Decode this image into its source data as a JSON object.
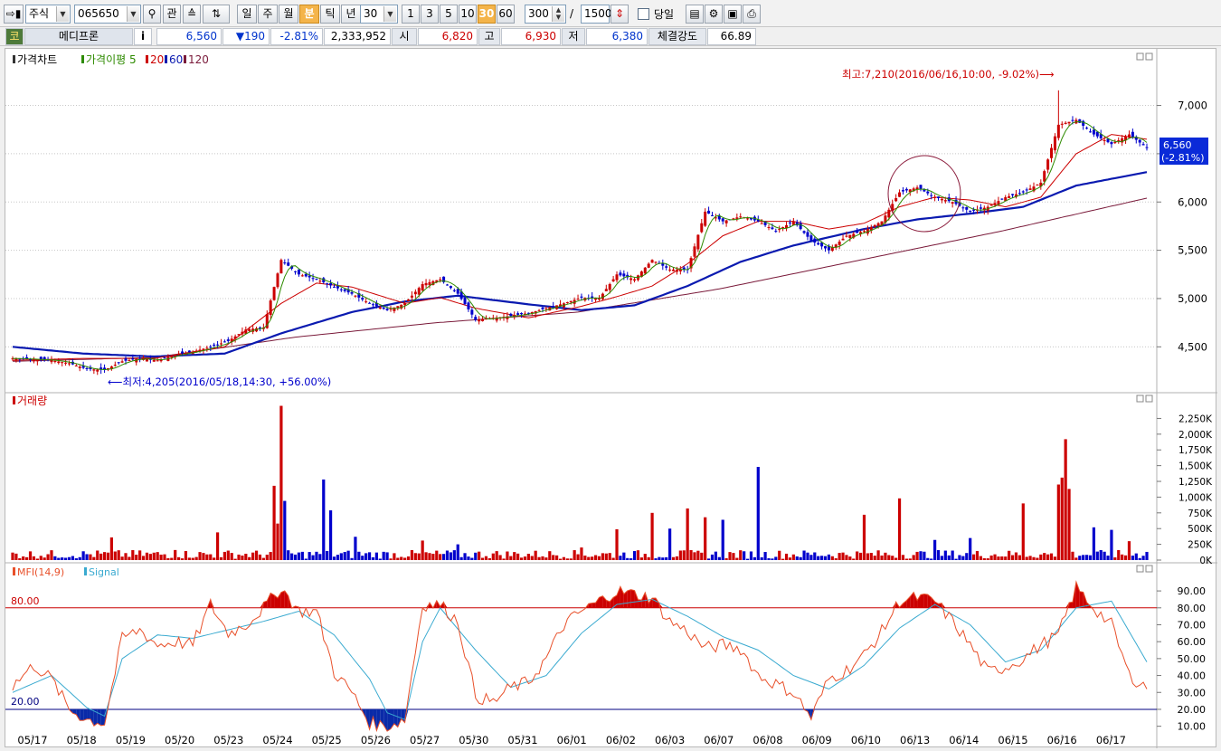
{
  "toolbar": {
    "market_label": "주식",
    "code_value": "065650",
    "watch_button": "관",
    "period_buttons": [
      "일",
      "주",
      "월",
      "분",
      "틱",
      "년"
    ],
    "active_period": "분",
    "interval_value": "30",
    "interval_buttons": [
      "1",
      "3",
      "5",
      "10",
      "30",
      "60"
    ],
    "active_interval": "30",
    "display_count": "300",
    "separator": "/",
    "max_count": "1500",
    "today_label": "당일"
  },
  "stock_info": {
    "badge": "코",
    "name": "메디프론",
    "info_button": "i",
    "price": "6,560",
    "change": "▼190",
    "change_pct": "-2.81%",
    "volume": "2,333,952",
    "open_label": "시",
    "open": "6,820",
    "high_label": "고",
    "high": "6,930",
    "low_label": "저",
    "low": "6,380",
    "strength_label": "체결강도",
    "strength": "66.89"
  },
  "colors": {
    "up": "#cc0000",
    "down": "#0000cc",
    "ma5": "#2e8b00",
    "ma20": "#cc0000",
    "ma60": "#0a1ab0",
    "ma120": "#7a1a3a",
    "mfi": "#e8502a",
    "signal": "#3aaad0"
  },
  "chart_data": [
    {
      "type": "candlestick",
      "legend": {
        "title": "가격차트",
        "ma_label": "가격이평 5",
        "ma20": "20",
        "ma60": "60",
        "ma120": "120"
      },
      "x_labels": [
        "05/17",
        "05/18",
        "05/19",
        "05/20",
        "05/23",
        "05/24",
        "05/25",
        "05/26",
        "05/27",
        "05/30",
        "05/31",
        "06/01",
        "06/02",
        "06/03",
        "06/07",
        "06/08",
        "06/09",
        "06/10",
        "06/13",
        "06/14",
        "06/15",
        "06/16",
        "06/17"
      ],
      "y_ticks": [
        "4,500",
        "5,000",
        "5,500",
        "6,000",
        "6,500",
        "7,000"
      ],
      "y_range": [
        4100,
        7380
      ],
      "close_path": [
        [
          0,
          4380
        ],
        [
          6,
          4370
        ],
        [
          11,
          4360
        ],
        [
          16,
          4330
        ],
        [
          21,
          4270
        ],
        [
          26,
          4260
        ],
        [
          31,
          4350
        ],
        [
          36,
          4380
        ],
        [
          41,
          4360
        ],
        [
          46,
          4420
        ],
        [
          51,
          4450
        ],
        [
          56,
          4500
        ],
        [
          61,
          4560
        ],
        [
          66,
          4680
        ],
        [
          71,
          4700
        ],
        [
          76,
          5400
        ],
        [
          81,
          5250
        ],
        [
          86,
          5200
        ],
        [
          91,
          5120
        ],
        [
          96,
          5050
        ],
        [
          101,
          4950
        ],
        [
          106,
          4880
        ],
        [
          111,
          4950
        ],
        [
          116,
          5150
        ],
        [
          121,
          5200
        ],
        [
          126,
          5050
        ],
        [
          131,
          4780
        ],
        [
          136,
          4800
        ],
        [
          141,
          4820
        ],
        [
          146,
          4850
        ],
        [
          151,
          4900
        ],
        [
          156,
          4950
        ],
        [
          161,
          5010
        ],
        [
          166,
          5000
        ],
        [
          171,
          5250
        ],
        [
          176,
          5200
        ],
        [
          181,
          5400
        ],
        [
          186,
          5300
        ],
        [
          191,
          5300
        ],
        [
          196,
          5900
        ],
        [
          201,
          5800
        ],
        [
          206,
          5850
        ],
        [
          211,
          5800
        ],
        [
          216,
          5700
        ],
        [
          221,
          5800
        ],
        [
          226,
          5600
        ],
        [
          231,
          5500
        ],
        [
          236,
          5650
        ],
        [
          241,
          5700
        ],
        [
          246,
          5800
        ],
        [
          251,
          6100
        ],
        [
          256,
          6150
        ],
        [
          261,
          6050
        ],
        [
          266,
          6000
        ],
        [
          271,
          5900
        ],
        [
          276,
          5950
        ],
        [
          281,
          6050
        ],
        [
          286,
          6100
        ],
        [
          291,
          6200
        ],
        [
          296,
          6800
        ],
        [
          301,
          6850
        ],
        [
          306,
          6700
        ],
        [
          311,
          6600
        ],
        [
          316,
          6700
        ],
        [
          321,
          6560
        ]
      ],
      "ma20_path": [
        [
          0,
          4360
        ],
        [
          20,
          4380
        ],
        [
          40,
          4380
        ],
        [
          60,
          4500
        ],
        [
          76,
          4950
        ],
        [
          86,
          5160
        ],
        [
          96,
          5120
        ],
        [
          111,
          4950
        ],
        [
          121,
          5010
        ],
        [
          131,
          4900
        ],
        [
          146,
          4800
        ],
        [
          161,
          4920
        ],
        [
          171,
          5020
        ],
        [
          181,
          5130
        ],
        [
          191,
          5360
        ],
        [
          201,
          5650
        ],
        [
          211,
          5800
        ],
        [
          221,
          5800
        ],
        [
          231,
          5720
        ],
        [
          241,
          5780
        ],
        [
          251,
          5950
        ],
        [
          261,
          6050
        ],
        [
          271,
          6020
        ],
        [
          281,
          5950
        ],
        [
          291,
          6050
        ],
        [
          301,
          6500
        ],
        [
          311,
          6700
        ],
        [
          321,
          6650
        ]
      ],
      "ma60_path": [
        [
          0,
          4500
        ],
        [
          20,
          4430
        ],
        [
          40,
          4400
        ],
        [
          60,
          4430
        ],
        [
          76,
          4640
        ],
        [
          96,
          4860
        ],
        [
          111,
          4970
        ],
        [
          126,
          5030
        ],
        [
          146,
          4940
        ],
        [
          161,
          4880
        ],
        [
          176,
          4930
        ],
        [
          191,
          5130
        ],
        [
          206,
          5380
        ],
        [
          221,
          5550
        ],
        [
          241,
          5720
        ],
        [
          256,
          5820
        ],
        [
          271,
          5880
        ],
        [
          286,
          5950
        ],
        [
          301,
          6170
        ],
        [
          321,
          6310
        ]
      ],
      "ma120_path": [
        [
          0,
          4350
        ],
        [
          40,
          4390
        ],
        [
          80,
          4600
        ],
        [
          120,
          4750
        ],
        [
          160,
          4860
        ],
        [
          200,
          5100
        ],
        [
          240,
          5400
        ],
        [
          280,
          5700
        ],
        [
          321,
          6040
        ]
      ],
      "annotations": {
        "high": "최고:7,210(2016/06/16,10:00, -9.02%)⟶",
        "low": "⟵최저:4,205(2016/05/18,14:30, +56.00%)"
      },
      "current_price_label": "6,560",
      "current_change_label": "(-2.81%)"
    },
    {
      "type": "bar",
      "title": "거래량",
      "y_ticks": [
        "0K",
        "250K",
        "500K",
        "750K",
        "1,000K",
        "1,250K",
        "1,500K",
        "1,750K",
        "2,000K",
        "2,250K"
      ],
      "y_range": [
        0,
        2400
      ],
      "peaks": [
        [
          28,
          360
        ],
        [
          46,
          160
        ],
        [
          58,
          440
        ],
        [
          74,
          1180
        ],
        [
          75,
          580
        ],
        [
          76,
          2450
        ],
        [
          77,
          940
        ],
        [
          88,
          1280
        ],
        [
          90,
          790
        ],
        [
          97,
          370
        ],
        [
          116,
          310
        ],
        [
          126,
          250
        ],
        [
          161,
          200
        ],
        [
          171,
          490
        ],
        [
          181,
          750
        ],
        [
          186,
          500
        ],
        [
          191,
          820
        ],
        [
          196,
          680
        ],
        [
          201,
          640
        ],
        [
          211,
          1480
        ],
        [
          241,
          720
        ],
        [
          251,
          980
        ],
        [
          261,
          320
        ],
        [
          271,
          350
        ],
        [
          286,
          900
        ],
        [
          296,
          1200
        ],
        [
          297,
          1310
        ],
        [
          298,
          1920
        ],
        [
          299,
          1130
        ],
        [
          306,
          520
        ],
        [
          311,
          480
        ],
        [
          316,
          300
        ],
        [
          321,
          130
        ]
      ]
    },
    {
      "type": "line",
      "title": "MFI(14,9)",
      "signal_label": "Signal",
      "y_ticks": [
        "10.00",
        "20.00",
        "30.00",
        "40.00",
        "50.00",
        "60.00",
        "70.00",
        "80.00",
        "90.00"
      ],
      "y_range": [
        5,
        97
      ],
      "overbought_label": "80.00",
      "oversold_label": "20.00",
      "mfi_path": [
        [
          0,
          34
        ],
        [
          6,
          46
        ],
        [
          11,
          38
        ],
        [
          16,
          20
        ],
        [
          21,
          14
        ],
        [
          26,
          12
        ],
        [
          31,
          62
        ],
        [
          36,
          67
        ],
        [
          41,
          58
        ],
        [
          46,
          60
        ],
        [
          51,
          58
        ],
        [
          56,
          82
        ],
        [
          61,
          65
        ],
        [
          66,
          70
        ],
        [
          71,
          80
        ],
        [
          76,
          92
        ],
        [
          81,
          78
        ],
        [
          86,
          78
        ],
        [
          91,
          42
        ],
        [
          96,
          30
        ],
        [
          101,
          12
        ],
        [
          106,
          10
        ],
        [
          111,
          14
        ],
        [
          116,
          82
        ],
        [
          121,
          82
        ],
        [
          126,
          72
        ],
        [
          131,
          28
        ],
        [
          136,
          24
        ],
        [
          141,
          33
        ],
        [
          146,
          36
        ],
        [
          151,
          50
        ],
        [
          156,
          70
        ],
        [
          161,
          78
        ],
        [
          166,
          84
        ],
        [
          171,
          90
        ],
        [
          176,
          88
        ],
        [
          181,
          86
        ],
        [
          186,
          72
        ],
        [
          191,
          66
        ],
        [
          196,
          56
        ],
        [
          201,
          58
        ],
        [
          206,
          56
        ],
        [
          211,
          40
        ],
        [
          216,
          35
        ],
        [
          221,
          30
        ],
        [
          226,
          15
        ],
        [
          231,
          38
        ],
        [
          236,
          43
        ],
        [
          241,
          52
        ],
        [
          246,
          66
        ],
        [
          251,
          84
        ],
        [
          256,
          86
        ],
        [
          261,
          84
        ],
        [
          266,
          72
        ],
        [
          271,
          58
        ],
        [
          276,
          42
        ],
        [
          281,
          45
        ],
        [
          286,
          50
        ],
        [
          291,
          58
        ],
        [
          296,
          64
        ],
        [
          301,
          92
        ],
        [
          306,
          80
        ],
        [
          311,
          70
        ],
        [
          316,
          40
        ],
        [
          321,
          33
        ]
      ],
      "signal_path": [
        [
          0,
          30
        ],
        [
          11,
          40
        ],
        [
          21,
          21
        ],
        [
          26,
          16
        ],
        [
          31,
          50
        ],
        [
          41,
          64
        ],
        [
          51,
          62
        ],
        [
          61,
          67
        ],
        [
          71,
          72
        ],
        [
          81,
          78
        ],
        [
          91,
          64
        ],
        [
          101,
          38
        ],
        [
          106,
          18
        ],
        [
          111,
          14
        ],
        [
          116,
          60
        ],
        [
          121,
          80
        ],
        [
          131,
          55
        ],
        [
          141,
          33
        ],
        [
          151,
          40
        ],
        [
          161,
          65
        ],
        [
          171,
          82
        ],
        [
          181,
          85
        ],
        [
          191,
          75
        ],
        [
          201,
          63
        ],
        [
          211,
          55
        ],
        [
          221,
          40
        ],
        [
          231,
          32
        ],
        [
          241,
          46
        ],
        [
          251,
          68
        ],
        [
          261,
          82
        ],
        [
          271,
          70
        ],
        [
          281,
          48
        ],
        [
          291,
          55
        ],
        [
          301,
          80
        ],
        [
          311,
          84
        ],
        [
          321,
          48
        ]
      ]
    }
  ]
}
